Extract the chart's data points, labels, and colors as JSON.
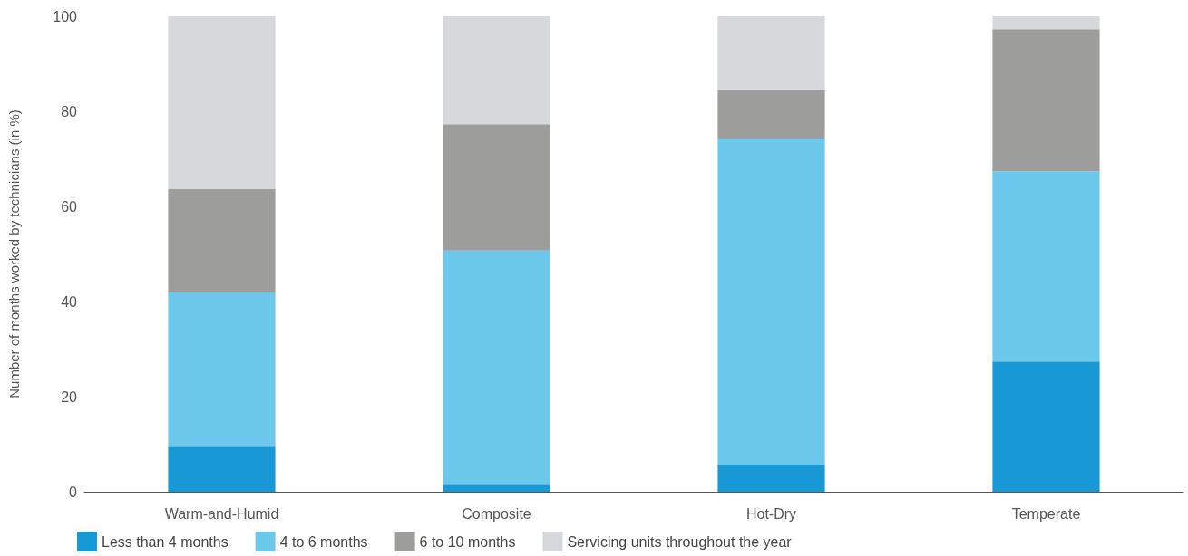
{
  "chart_data": {
    "type": "bar",
    "stacked": true,
    "ylabel": "Number of months worked by technicians (in %)",
    "categories": [
      "Warm-and-Humid",
      "Composite",
      "Hot-Dry",
      "Temperate"
    ],
    "series": [
      {
        "name": "Less than 4 months",
        "color": "#1899d6",
        "values": [
          9.5,
          1.5,
          5.7,
          27.4
        ]
      },
      {
        "name": "4 to 6 months",
        "color": "#6bc8eb",
        "values": [
          32.4,
          49.2,
          68.6,
          40
        ]
      },
      {
        "name": "6 to 10 months",
        "color": "#9d9d9b",
        "values": [
          21.7,
          26.6,
          10.3,
          29.9
        ]
      },
      {
        "name": "Servicing units throughout the year",
        "color": "#d7d8dc",
        "values": [
          36.4,
          22.7,
          15.4,
          2.7
        ]
      }
    ],
    "ylim": [
      0,
      100
    ],
    "yticks": [
      0,
      20,
      40,
      60,
      80,
      100
    ],
    "grid": false,
    "legend": "bottom left"
  }
}
